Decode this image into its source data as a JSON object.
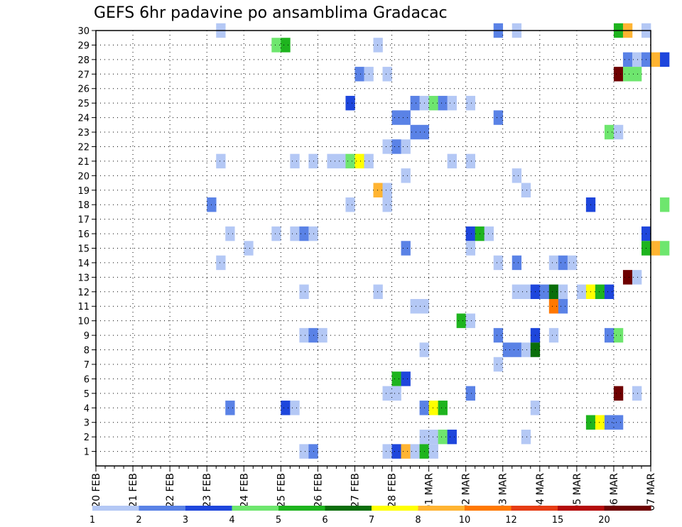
{
  "chart_data": {
    "type": "heatmap",
    "title": "GEFS 6hr padavine po ansamblima Gradacac",
    "xlabel": "",
    "ylabel": "",
    "x_ticks": [
      "20 FEB",
      "21 FEB",
      "22 FEB",
      "23 FEB",
      "24 FEB",
      "25 FEB",
      "26 FEB",
      "27 FEB",
      "28 FEB",
      "01 MAR",
      "02 MAR",
      "03 MAR",
      "04 MAR",
      "05 MAR",
      "06 MAR",
      "07 MAR"
    ],
    "x_range_days": [
      0,
      15
    ],
    "ylim": [
      0,
      30
    ],
    "y_ticks": [
      1,
      2,
      3,
      4,
      5,
      6,
      7,
      8,
      9,
      10,
      11,
      12,
      13,
      14,
      15,
      16,
      17,
      18,
      19,
      20,
      21,
      22,
      23,
      24,
      25,
      26,
      27,
      28,
      29,
      30
    ],
    "grid": true,
    "legend": {
      "placement": "bottom",
      "thresholds": [
        "1",
        "2",
        "3",
        "4",
        "5",
        "6",
        "7",
        "8",
        "10",
        "12",
        "15",
        "20"
      ],
      "colors": [
        "#b4c8f5",
        "#5a82e6",
        "#1e46dc",
        "#6ee66e",
        "#1eb41e",
        "#0a6e0a",
        "#ffff00",
        "#ffb432",
        "#ff7800",
        "#e63c14",
        "#b40a0a",
        "#6e0000"
      ]
    },
    "cells": [
      {
        "member": 30,
        "t": 3.25,
        "v": 1
      },
      {
        "member": 30,
        "t": 10.75,
        "v": 2
      },
      {
        "member": 30,
        "t": 11.25,
        "v": 1
      },
      {
        "member": 30,
        "t": 14.0,
        "v": 5
      },
      {
        "member": 30,
        "t": 14.25,
        "v": 8
      },
      {
        "member": 30,
        "t": 14.75,
        "v": 1
      },
      {
        "member": 29,
        "t": 4.75,
        "v": 4
      },
      {
        "member": 29,
        "t": 5.0,
        "v": 5
      },
      {
        "member": 29,
        "t": 7.5,
        "v": 1
      },
      {
        "member": 28,
        "t": 14.25,
        "v": 2
      },
      {
        "member": 28,
        "t": 14.5,
        "v": 1
      },
      {
        "member": 28,
        "t": 14.75,
        "v": 2
      },
      {
        "member": 28,
        "t": 15.0,
        "v": 8
      },
      {
        "member": 28,
        "t": 15.25,
        "v": 3
      },
      {
        "member": 27,
        "t": 7.0,
        "v": 2
      },
      {
        "member": 27,
        "t": 7.25,
        "v": 1
      },
      {
        "member": 27,
        "t": 7.75,
        "v": 1
      },
      {
        "member": 27,
        "t": 14.0,
        "v": 20
      },
      {
        "member": 27,
        "t": 14.25,
        "v": 4
      },
      {
        "member": 27,
        "t": 14.5,
        "v": 4
      },
      {
        "member": 25,
        "t": 6.75,
        "v": 3
      },
      {
        "member": 25,
        "t": 8.5,
        "v": 2
      },
      {
        "member": 25,
        "t": 8.75,
        "v": 1
      },
      {
        "member": 25,
        "t": 9.0,
        "v": 4
      },
      {
        "member": 25,
        "t": 9.25,
        "v": 2
      },
      {
        "member": 25,
        "t": 9.5,
        "v": 1
      },
      {
        "member": 25,
        "t": 10.0,
        "v": 1
      },
      {
        "member": 24,
        "t": 8.0,
        "v": 2
      },
      {
        "member": 24,
        "t": 8.25,
        "v": 2
      },
      {
        "member": 24,
        "t": 10.75,
        "v": 2
      },
      {
        "member": 23,
        "t": 8.5,
        "v": 2
      },
      {
        "member": 23,
        "t": 8.75,
        "v": 2
      },
      {
        "member": 23,
        "t": 13.75,
        "v": 4
      },
      {
        "member": 23,
        "t": 14.0,
        "v": 1
      },
      {
        "member": 22,
        "t": 7.75,
        "v": 1
      },
      {
        "member": 22,
        "t": 8.0,
        "v": 2
      },
      {
        "member": 22,
        "t": 8.25,
        "v": 1
      },
      {
        "member": 21,
        "t": 3.25,
        "v": 1
      },
      {
        "member": 21,
        "t": 5.25,
        "v": 1
      },
      {
        "member": 21,
        "t": 5.75,
        "v": 1
      },
      {
        "member": 21,
        "t": 6.25,
        "v": 1
      },
      {
        "member": 21,
        "t": 6.5,
        "v": 1
      },
      {
        "member": 21,
        "t": 6.75,
        "v": 4
      },
      {
        "member": 21,
        "t": 7.0,
        "v": 7
      },
      {
        "member": 21,
        "t": 7.25,
        "v": 1
      },
      {
        "member": 21,
        "t": 9.5,
        "v": 1
      },
      {
        "member": 21,
        "t": 10.0,
        "v": 1
      },
      {
        "member": 20,
        "t": 8.25,
        "v": 1
      },
      {
        "member": 20,
        "t": 11.25,
        "v": 1
      },
      {
        "member": 19,
        "t": 7.5,
        "v": 8
      },
      {
        "member": 19,
        "t": 7.75,
        "v": 1
      },
      {
        "member": 19,
        "t": 11.5,
        "v": 1
      },
      {
        "member": 18,
        "t": 3.0,
        "v": 2
      },
      {
        "member": 18,
        "t": 6.75,
        "v": 1
      },
      {
        "member": 18,
        "t": 7.75,
        "v": 1
      },
      {
        "member": 18,
        "t": 13.25,
        "v": 3
      },
      {
        "member": 18,
        "t": 15.25,
        "v": 4
      },
      {
        "member": 16,
        "t": 3.5,
        "v": 1
      },
      {
        "member": 16,
        "t": 4.75,
        "v": 1
      },
      {
        "member": 16,
        "t": 5.25,
        "v": 1
      },
      {
        "member": 16,
        "t": 5.5,
        "v": 2
      },
      {
        "member": 16,
        "t": 5.75,
        "v": 1
      },
      {
        "member": 16,
        "t": 10.0,
        "v": 3
      },
      {
        "member": 16,
        "t": 10.25,
        "v": 5
      },
      {
        "member": 16,
        "t": 10.5,
        "v": 1
      },
      {
        "member": 16,
        "t": 14.75,
        "v": 3
      },
      {
        "member": 15,
        "t": 4.0,
        "v": 1
      },
      {
        "member": 15,
        "t": 8.25,
        "v": 2
      },
      {
        "member": 15,
        "t": 10.0,
        "v": 1
      },
      {
        "member": 15,
        "t": 14.75,
        "v": 5
      },
      {
        "member": 15,
        "t": 15.0,
        "v": 8
      },
      {
        "member": 15,
        "t": 15.25,
        "v": 4
      },
      {
        "member": 14,
        "t": 3.25,
        "v": 1
      },
      {
        "member": 14,
        "t": 10.75,
        "v": 1
      },
      {
        "member": 14,
        "t": 11.25,
        "v": 2
      },
      {
        "member": 14,
        "t": 12.25,
        "v": 1
      },
      {
        "member": 14,
        "t": 12.5,
        "v": 2
      },
      {
        "member": 14,
        "t": 12.75,
        "v": 1
      },
      {
        "member": 13,
        "t": 14.25,
        "v": 20
      },
      {
        "member": 13,
        "t": 14.5,
        "v": 1
      },
      {
        "member": 12,
        "t": 5.5,
        "v": 1
      },
      {
        "member": 12,
        "t": 7.5,
        "v": 1
      },
      {
        "member": 12,
        "t": 11.25,
        "v": 1
      },
      {
        "member": 12,
        "t": 11.5,
        "v": 1
      },
      {
        "member": 12,
        "t": 11.75,
        "v": 3
      },
      {
        "member": 12,
        "t": 12.0,
        "v": 2
      },
      {
        "member": 12,
        "t": 12.25,
        "v": 6
      },
      {
        "member": 12,
        "t": 12.5,
        "v": 1
      },
      {
        "member": 12,
        "t": 13.0,
        "v": 1
      },
      {
        "member": 12,
        "t": 13.25,
        "v": 7
      },
      {
        "member": 12,
        "t": 13.5,
        "v": 5
      },
      {
        "member": 12,
        "t": 13.75,
        "v": 3
      },
      {
        "member": 11,
        "t": 8.5,
        "v": 1
      },
      {
        "member": 11,
        "t": 8.75,
        "v": 1
      },
      {
        "member": 11,
        "t": 12.25,
        "v": 10
      },
      {
        "member": 11,
        "t": 12.5,
        "v": 2
      },
      {
        "member": 10,
        "t": 9.75,
        "v": 5
      },
      {
        "member": 10,
        "t": 10.0,
        "v": 1
      },
      {
        "member": 9,
        "t": 5.5,
        "v": 1
      },
      {
        "member": 9,
        "t": 5.75,
        "v": 2
      },
      {
        "member": 9,
        "t": 6.0,
        "v": 1
      },
      {
        "member": 9,
        "t": 10.75,
        "v": 2
      },
      {
        "member": 9,
        "t": 11.75,
        "v": 3
      },
      {
        "member": 9,
        "t": 12.25,
        "v": 1
      },
      {
        "member": 9,
        "t": 13.75,
        "v": 2
      },
      {
        "member": 9,
        "t": 14.0,
        "v": 4
      },
      {
        "member": 8,
        "t": 8.75,
        "v": 1
      },
      {
        "member": 8,
        "t": 11.0,
        "v": 2
      },
      {
        "member": 8,
        "t": 11.25,
        "v": 2
      },
      {
        "member": 8,
        "t": 11.5,
        "v": 1
      },
      {
        "member": 8,
        "t": 11.75,
        "v": 6
      },
      {
        "member": 7,
        "t": 10.75,
        "v": 1
      },
      {
        "member": 6,
        "t": 8.0,
        "v": 5
      },
      {
        "member": 6,
        "t": 8.25,
        "v": 3
      },
      {
        "member": 5,
        "t": 7.75,
        "v": 1
      },
      {
        "member": 5,
        "t": 8.0,
        "v": 1
      },
      {
        "member": 5,
        "t": 10.0,
        "v": 2
      },
      {
        "member": 5,
        "t": 14.0,
        "v": 20
      },
      {
        "member": 5,
        "t": 14.5,
        "v": 1
      },
      {
        "member": 4,
        "t": 3.5,
        "v": 2
      },
      {
        "member": 4,
        "t": 5.0,
        "v": 3
      },
      {
        "member": 4,
        "t": 5.25,
        "v": 1
      },
      {
        "member": 4,
        "t": 8.75,
        "v": 2
      },
      {
        "member": 4,
        "t": 9.0,
        "v": 7
      },
      {
        "member": 4,
        "t": 9.25,
        "v": 5
      },
      {
        "member": 4,
        "t": 11.75,
        "v": 1
      },
      {
        "member": 3,
        "t": 13.25,
        "v": 5
      },
      {
        "member": 3,
        "t": 13.5,
        "v": 7
      },
      {
        "member": 3,
        "t": 13.75,
        "v": 2
      },
      {
        "member": 3,
        "t": 14.0,
        "v": 2
      },
      {
        "member": 2,
        "t": 8.75,
        "v": 1
      },
      {
        "member": 2,
        "t": 9.0,
        "v": 1
      },
      {
        "member": 2,
        "t": 9.25,
        "v": 4
      },
      {
        "member": 2,
        "t": 9.5,
        "v": 3
      },
      {
        "member": 2,
        "t": 11.5,
        "v": 1
      },
      {
        "member": 1,
        "t": 5.5,
        "v": 1
      },
      {
        "member": 1,
        "t": 5.75,
        "v": 2
      },
      {
        "member": 1,
        "t": 7.75,
        "v": 1
      },
      {
        "member": 1,
        "t": 8.0,
        "v": 3
      },
      {
        "member": 1,
        "t": 8.25,
        "v": 8
      },
      {
        "member": 1,
        "t": 8.5,
        "v": 1
      },
      {
        "member": 1,
        "t": 8.75,
        "v": 5
      },
      {
        "member": 1,
        "t": 9.0,
        "v": 1
      }
    ]
  }
}
